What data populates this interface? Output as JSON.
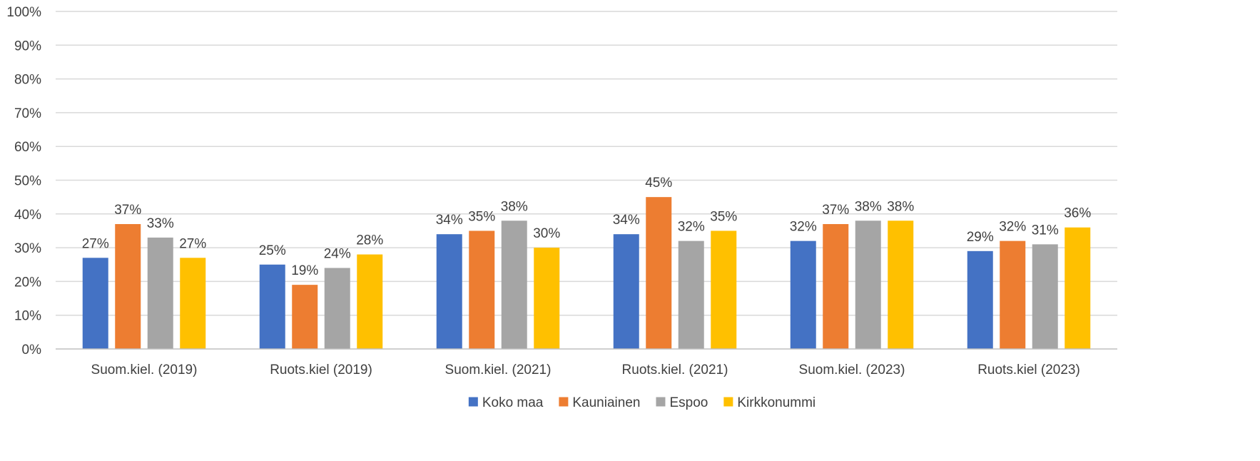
{
  "chart_data": {
    "type": "bar",
    "title": "",
    "xlabel": "",
    "ylabel": "",
    "ylim": [
      0,
      100
    ],
    "y_ticks": [
      "0%",
      "10%",
      "20%",
      "30%",
      "40%",
      "50%",
      "60%",
      "70%",
      "80%",
      "90%",
      "100%"
    ],
    "y_tick_values": [
      0,
      10,
      20,
      30,
      40,
      50,
      60,
      70,
      80,
      90,
      100
    ],
    "grid": true,
    "legend_position": "bottom",
    "categories": [
      "Suom.kiel. (2019)",
      "Ruots.kiel (2019)",
      "Suom.kiel. (2021)",
      "Ruots.kiel. (2021)",
      "Suom.kiel. (2023)",
      "Ruots.kiel (2023)"
    ],
    "series": [
      {
        "name": "Koko maa",
        "color": "#4472C4",
        "values": [
          27,
          25,
          34,
          34,
          32,
          29
        ],
        "labels": [
          "27%",
          "25%",
          "34%",
          "34%",
          "32%",
          "29%"
        ]
      },
      {
        "name": "Kauniainen",
        "color": "#ED7D31",
        "values": [
          37,
          19,
          35,
          45,
          37,
          32
        ],
        "labels": [
          "37%",
          "19%",
          "35%",
          "45%",
          "37%",
          "32%"
        ]
      },
      {
        "name": "Espoo",
        "color": "#A5A5A5",
        "values": [
          33,
          24,
          38,
          32,
          38,
          31
        ],
        "labels": [
          "33%",
          "24%",
          "38%",
          "32%",
          "38%",
          "31%"
        ]
      },
      {
        "name": "Kirkkonummi",
        "color": "#FFC000",
        "values": [
          27,
          28,
          30,
          35,
          38,
          36
        ],
        "labels": [
          "27%",
          "28%",
          "30%",
          "35%",
          "38%",
          "36%"
        ]
      }
    ]
  }
}
